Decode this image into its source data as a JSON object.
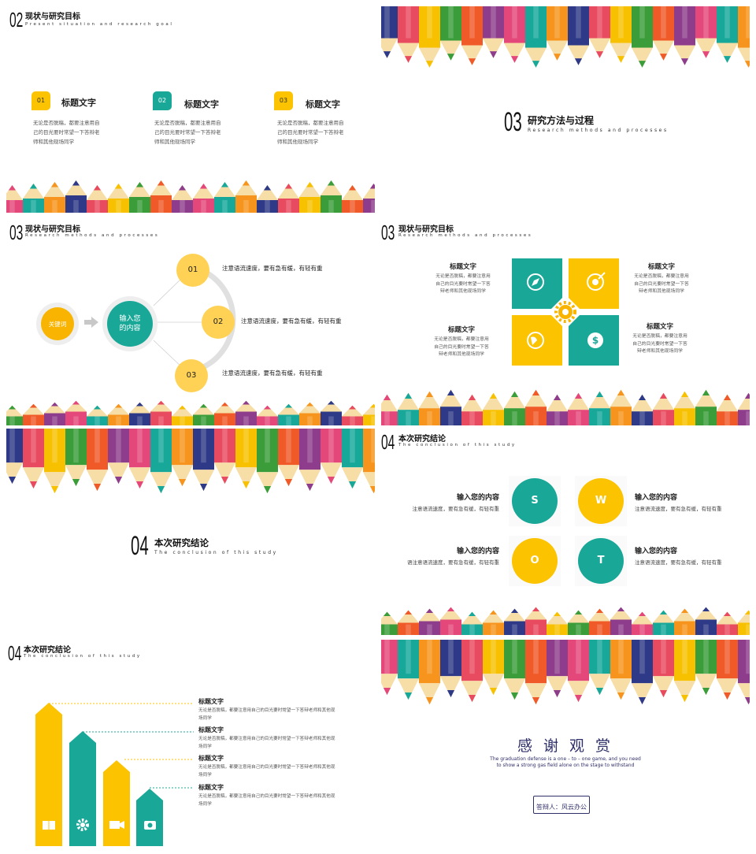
{
  "colors": {
    "teal": "#19A898",
    "yellow": "#FCC300",
    "gold": "#F8B400",
    "pale_yellow": "#FFD255",
    "navy": "#2F2F6A"
  },
  "pencil_colors": [
    "#E4477A",
    "#F05A28",
    "#F8C100",
    "#2E3A87",
    "#17A89A",
    "#8E3D8C",
    "#3A9D3A",
    "#E84A5F",
    "#F7941D"
  ],
  "slide1": {
    "num": "02",
    "title": "现状与研究目标",
    "subtitle": "Present situation and research goal",
    "items": [
      {
        "badge": "01",
        "title": "标题文字",
        "lines": [
          "无论是否脱稿，都要注意用自",
          "己的目光要时常望一下答辩老",
          "师和其他现场同学"
        ]
      },
      {
        "badge": "02",
        "title": "标题文字",
        "lines": [
          "无论是否脱稿，都要注意用自",
          "己的目光要时常望一下答辩老",
          "师和其他现场同学"
        ]
      },
      {
        "badge": "03",
        "title": "标题文字",
        "lines": [
          "无论是否脱稿，都要注意用自",
          "己的目光要时常望一下答辩老",
          "师和其他现场同学"
        ]
      }
    ]
  },
  "slide2": {
    "num": "03",
    "title": "研究方法与过程",
    "subtitle": "Research methods and processes"
  },
  "slide3": {
    "num": "03",
    "title": "现状与研究目标",
    "subtitle": "Research methods and processes",
    "keyword": "关键词",
    "center": [
      "输入您",
      "的内容"
    ],
    "steps": [
      {
        "num": "01",
        "text": "注意语流速度，要有急有缓，有轻有重"
      },
      {
        "num": "02",
        "text": "注意语流速度，要有急有缓，有轻有重"
      },
      {
        "num": "03",
        "text": "注意语流速度，要有急有缓，有轻有重"
      }
    ]
  },
  "slide4": {
    "num": "03",
    "title": "现状与研究目标",
    "subtitle": "Research methods and processes",
    "blocks": [
      {
        "title": "标题文字",
        "lines": [
          "无论是否脱稿，都要注意用",
          "自己的目光要时常望一下答",
          "辩老师和其他现场同学"
        ]
      },
      {
        "title": "标题文字",
        "lines": [
          "无论是否脱稿，都要注意用",
          "自己的目光要时常望一下答",
          "辩老师和其他现场同学"
        ]
      },
      {
        "title": "标题文字",
        "lines": [
          "无论是否脱稿，都要注意用",
          "自己的目光要时常望一下答",
          "辩老师和其他现场同学"
        ]
      },
      {
        "title": "标题文字",
        "lines": [
          "无论是否脱稿，都要注意用",
          "自己的目光要时常望一下答",
          "辩老师和其他现场同学"
        ]
      }
    ]
  },
  "slide5": {
    "num": "04",
    "title": "本次研究结论",
    "subtitle": "The conclusion of this study"
  },
  "slide6": {
    "num": "04",
    "title": "本次研究结论",
    "subtitle": "The conclusion of this study",
    "swot": [
      {
        "letter": "S",
        "title": "输入您的内容",
        "text": "注意语流速度，要有急有缓，有轻有重"
      },
      {
        "letter": "W",
        "title": "输入您的内容",
        "text": "注意语流速度，要有急有缓，有轻有重"
      },
      {
        "letter": "O",
        "title": "输入您的内容",
        "text": "语注意语流速度，要有急有缓，有轻有重"
      },
      {
        "letter": "T",
        "title": "输入您的内容",
        "text": "注意语流速度，要有急有缓，有轻有重"
      }
    ]
  },
  "slide7": {
    "num": "04",
    "title": "本次研究结论",
    "subtitle": "The conclusion of this study",
    "items": [
      {
        "title": "标题文字",
        "lines": [
          "无论是否脱稿，都要注意用自己的目光要时常望一下答辩老师和其他现",
          "场同学"
        ]
      },
      {
        "title": "标题文字",
        "lines": [
          "无论是否脱稿，都要注意用自己的目光要时常望一下答辩老师和其他现",
          "场同学"
        ]
      },
      {
        "title": "标题文字",
        "lines": [
          "无论是否脱稿，都要注意用自己的目光要时常望一下答辩老师和其他现",
          "场同学"
        ]
      },
      {
        "title": "标题文字",
        "lines": [
          "无论是否脱稿，都要注意用自己的目光要时常望一下答辩老师和其他现",
          "场同学"
        ]
      }
    ],
    "icons": [
      "book-icon",
      "gear-icon",
      "video-camera-icon",
      "camera-icon"
    ]
  },
  "slide8": {
    "thanks": "感 谢 观 赏",
    "lines": [
      "The graduation defense is a one – to – one game, and you need",
      "to show a strong gas field alone on the stage to withstand"
    ],
    "presenter": "答辩人：风云办公"
  }
}
